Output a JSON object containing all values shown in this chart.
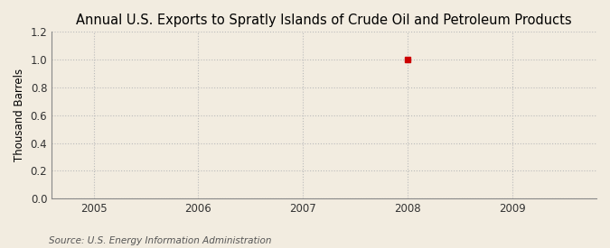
{
  "title": "Annual U.S. Exports to Spratly Islands of Crude Oil and Petroleum Products",
  "xlabel": "",
  "ylabel": "Thousand Barrels",
  "source": "Source: U.S. Energy Information Administration",
  "x_data": [
    2008
  ],
  "y_data": [
    1.0
  ],
  "xlim": [
    2004.6,
    2009.8
  ],
  "ylim": [
    0,
    1.2
  ],
  "yticks": [
    0.0,
    0.2,
    0.4,
    0.6,
    0.8,
    1.0,
    1.2
  ],
  "xticks": [
    2005,
    2006,
    2007,
    2008,
    2009
  ],
  "marker_color": "#cc0000",
  "marker": "s",
  "marker_size": 4,
  "grid_color": "#bbbbbb",
  "grid_style": ":",
  "grid_alpha": 1.0,
  "bg_color": "#f2ece0",
  "plot_bg_color": "#f2ece0",
  "title_fontsize": 10.5,
  "ylabel_fontsize": 8.5,
  "source_fontsize": 7.5,
  "tick_fontsize": 8.5
}
